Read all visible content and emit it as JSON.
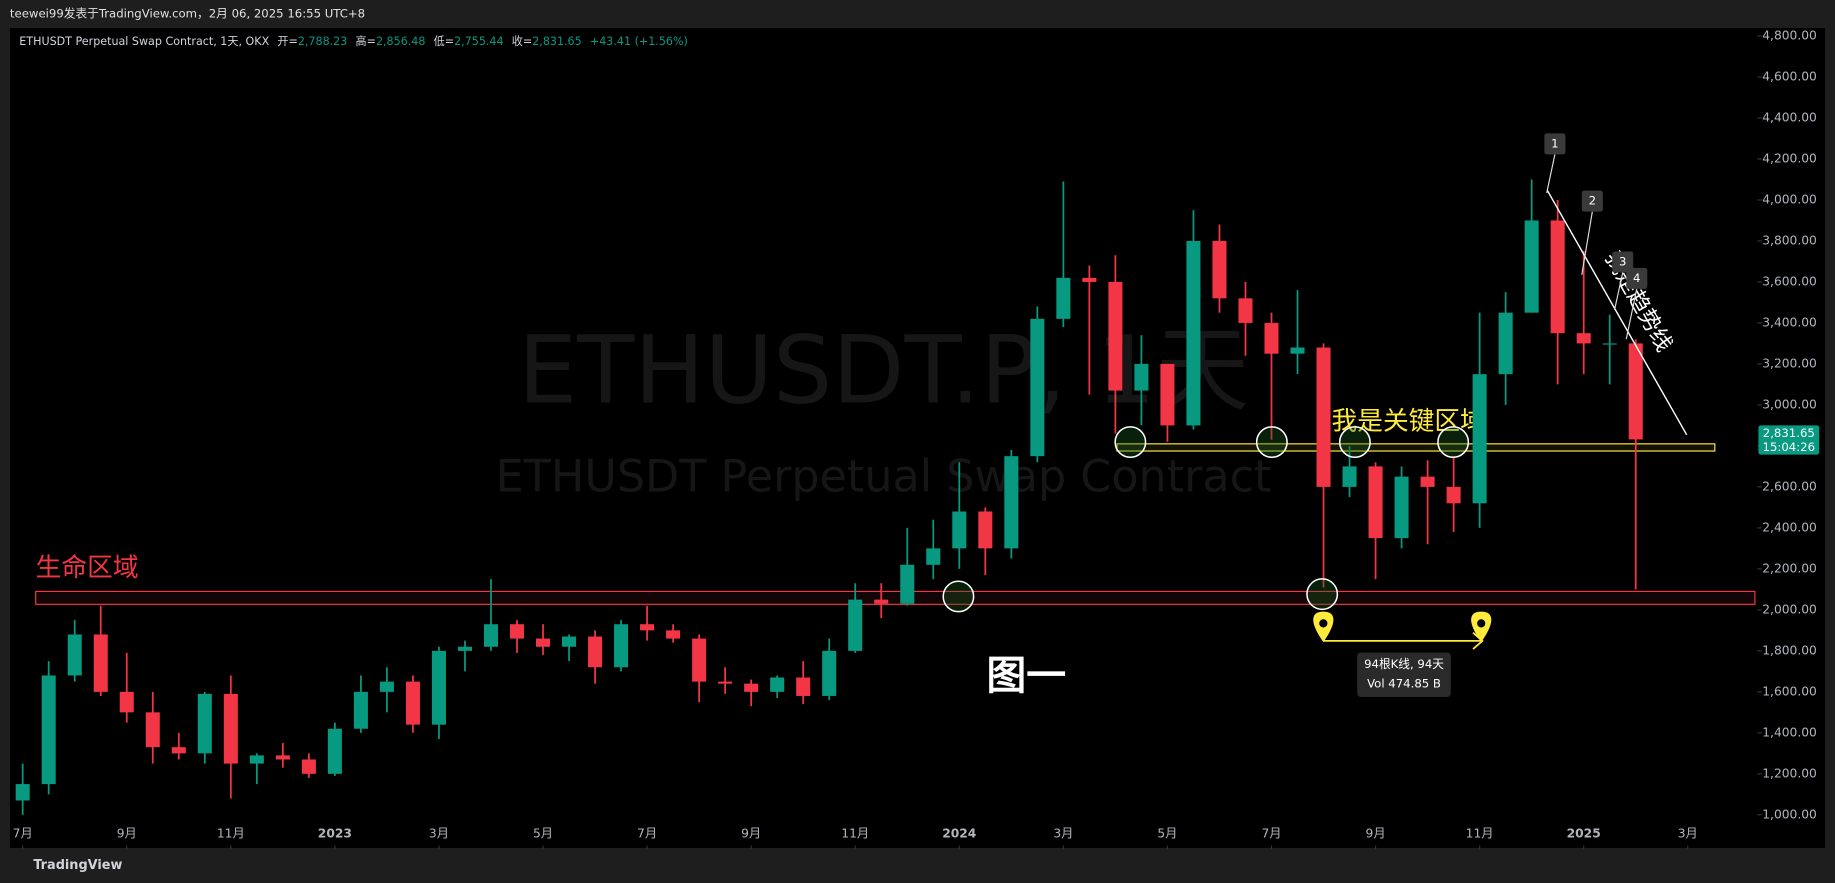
{
  "top_bar": "teewei99发表于TradingView.com，2月 06, 2025 16:55 UTC+8",
  "header": {
    "symbol": "ETHUSDT Perpetual Swap Contract, 1天, OKX",
    "open_label": "开=",
    "open": "2,788.23",
    "high_label": "高=",
    "high": "2,856.48",
    "low_label": "低=",
    "low": "2,755.44",
    "close_label": "收=",
    "close": "2,831.65",
    "change": "+43.41 (+1.56%)"
  },
  "footer": "TradingView",
  "chart_data": {
    "type": "candlestick",
    "watermark": "ETHUSDT.P, 1天",
    "watermark_sub": "ETHUSDT Perpetual Swap Contract",
    "x": [
      0,
      0.5,
      1,
      1.5,
      2,
      2.5,
      3,
      3.5,
      4,
      4.5,
      5,
      5.5,
      6,
      6.5,
      7,
      7.5,
      8,
      8.5,
      9,
      9.5,
      10,
      10.5,
      11,
      11.5,
      12,
      12.5,
      13,
      13.5,
      14,
      14.5,
      15,
      15.5,
      16,
      16.5,
      17,
      17.5,
      18,
      18.5,
      19,
      19.5,
      20,
      20.5,
      21,
      21.5,
      22,
      22.5,
      23,
      23.5,
      24,
      24.5,
      25,
      25.5,
      26,
      26.5,
      27,
      27.5,
      28,
      28.5,
      29,
      29.5,
      30,
      30.5,
      31
    ],
    "open": [
      1070,
      1150,
      1680,
      1880,
      1600,
      1500,
      1330,
      1300,
      1590,
      1250,
      1290,
      1270,
      1200,
      1420,
      1600,
      1650,
      1440,
      1800,
      1820,
      1930,
      1860,
      1820,
      1870,
      1720,
      1930,
      1900,
      1860,
      1650,
      1640,
      1600,
      1670,
      1580,
      1800,
      2050,
      2030,
      2220,
      2300,
      2480,
      2300,
      2750,
      3420,
      3620,
      3600,
      3070,
      3200,
      2900,
      3800,
      3520,
      3400,
      3250,
      3280,
      2600,
      2700,
      2350,
      2650,
      2600,
      2520,
      3150,
      3450,
      3900,
      3350,
      3300,
      3300
    ],
    "high": [
      1250,
      1750,
      1950,
      2020,
      1790,
      1600,
      1400,
      1600,
      1680,
      1300,
      1350,
      1300,
      1450,
      1680,
      1720,
      1680,
      1820,
      1850,
      2150,
      1950,
      1930,
      1880,
      1900,
      1950,
      2020,
      1930,
      1880,
      1720,
      1660,
      1680,
      1750,
      1860,
      2130,
      2130,
      2400,
      2440,
      2720,
      2500,
      2780,
      3480,
      4090,
      3680,
      3730,
      3340,
      3200,
      3950,
      3880,
      3600,
      3450,
      3560,
      3300,
      2800,
      2720,
      2700,
      2730,
      2750,
      3450,
      3550,
      4100,
      4000,
      3750,
      3440,
      3320
    ],
    "low": [
      1000,
      1100,
      1650,
      1580,
      1450,
      1250,
      1270,
      1250,
      1080,
      1150,
      1230,
      1180,
      1190,
      1400,
      1500,
      1400,
      1370,
      1700,
      1800,
      1790,
      1780,
      1750,
      1640,
      1700,
      1850,
      1840,
      1550,
      1590,
      1530,
      1570,
      1540,
      1560,
      1790,
      1960,
      2020,
      2150,
      2200,
      2170,
      2250,
      2720,
      3380,
      3050,
      2860,
      2900,
      2820,
      2880,
      3450,
      3240,
      2830,
      3150,
      2110,
      2550,
      2150,
      2300,
      2320,
      2380,
      2400,
      3000,
      3450,
      3100,
      3150,
      3100,
      2100
    ],
    "close": [
      1150,
      1680,
      1880,
      1600,
      1500,
      1330,
      1300,
      1590,
      1250,
      1290,
      1270,
      1200,
      1420,
      1600,
      1650,
      1440,
      1800,
      1820,
      1930,
      1860,
      1820,
      1870,
      1720,
      1930,
      1900,
      1860,
      1650,
      1640,
      1600,
      1670,
      1580,
      1800,
      2050,
      2030,
      2220,
      2300,
      2480,
      2300,
      2750,
      3420,
      3620,
      3600,
      3070,
      3200,
      2900,
      3800,
      3520,
      3400,
      3250,
      3280,
      2600,
      2700,
      2350,
      2650,
      2600,
      2520,
      3150,
      3450,
      3900,
      3350,
      3300,
      3300,
      2831.65
    ],
    "up_color": "#089981",
    "down_color": "#f23645",
    "xlim": [
      -0.2,
      33.29
    ],
    "ylim": [
      850,
      4850
    ],
    "xticks": [
      {
        "value": 0,
        "label": "7月"
      },
      {
        "value": 2,
        "label": "9月"
      },
      {
        "value": 4,
        "label": "11月"
      },
      {
        "value": 6,
        "label": "2023"
      },
      {
        "value": 8,
        "label": "3月"
      },
      {
        "value": 10,
        "label": "5月"
      },
      {
        "value": 12,
        "label": "7月"
      },
      {
        "value": 14,
        "label": "9月"
      },
      {
        "value": 16,
        "label": "11月"
      },
      {
        "value": 18,
        "label": "2024"
      },
      {
        "value": 20,
        "label": "3月"
      },
      {
        "value": 22,
        "label": "5月"
      },
      {
        "value": 24,
        "label": "7月"
      },
      {
        "value": 26,
        "label": "9月"
      },
      {
        "value": 28,
        "label": "11月"
      },
      {
        "value": 30,
        "label": "2025"
      },
      {
        "value": 32,
        "label": "3月"
      }
    ],
    "yticks": [
      {
        "value": 1000,
        "label": "1,000.00"
      },
      {
        "value": 1200,
        "label": "1,200.00"
      },
      {
        "value": 1400,
        "label": "1,400.00"
      },
      {
        "value": 1600,
        "label": "1,600.00"
      },
      {
        "value": 1800,
        "label": "1,800.00"
      },
      {
        "value": 2000,
        "label": "2,000.00"
      },
      {
        "value": 2200,
        "label": "2,200.00"
      },
      {
        "value": 2400,
        "label": "2,400.00"
      },
      {
        "value": 2600,
        "label": "2,600.00"
      },
      {
        "value": 2800,
        "label": "2,800.00"
      },
      {
        "value": 3000,
        "label": "3,000.00"
      },
      {
        "value": 3200,
        "label": "3,200.00"
      },
      {
        "value": 3400,
        "label": "3,400.00"
      },
      {
        "value": 3600,
        "label": "3,600.00"
      },
      {
        "value": 3800,
        "label": "3,800.00"
      },
      {
        "value": 4000,
        "label": "4,000.00"
      },
      {
        "value": 4200,
        "label": "4,200.00"
      },
      {
        "value": 4400,
        "label": "4,400.00"
      },
      {
        "value": 4600,
        "label": "4,600.00"
      },
      {
        "value": 4800,
        "label": "4,800.00"
      }
    ],
    "grid": false,
    "last_price": {
      "value": 2831.65,
      "label": "2,831.65"
    },
    "countdown": "15:04:26",
    "zones": [
      {
        "label": "生命区域",
        "low": 2027,
        "high": 2090,
        "x": [
          0.25,
          33.29
        ],
        "color": "#f23645"
      },
      {
        "label": "我是关键区域",
        "low": 2775,
        "high": 2810,
        "x": [
          21.03,
          32.52
        ],
        "color": "#ffeb3b"
      }
    ],
    "trendline": {
      "label": "我是趋势线",
      "x": [
        29.3,
        31.98
      ],
      "y": [
        4047,
        2854
      ],
      "color": "#ffffff"
    },
    "markers": [
      "1",
      "2",
      "3",
      "4"
    ],
    "figure_label": "图一",
    "measure": {
      "bars_days": "94根K线, 94天",
      "volume": "Vol 474.85 B"
    }
  }
}
